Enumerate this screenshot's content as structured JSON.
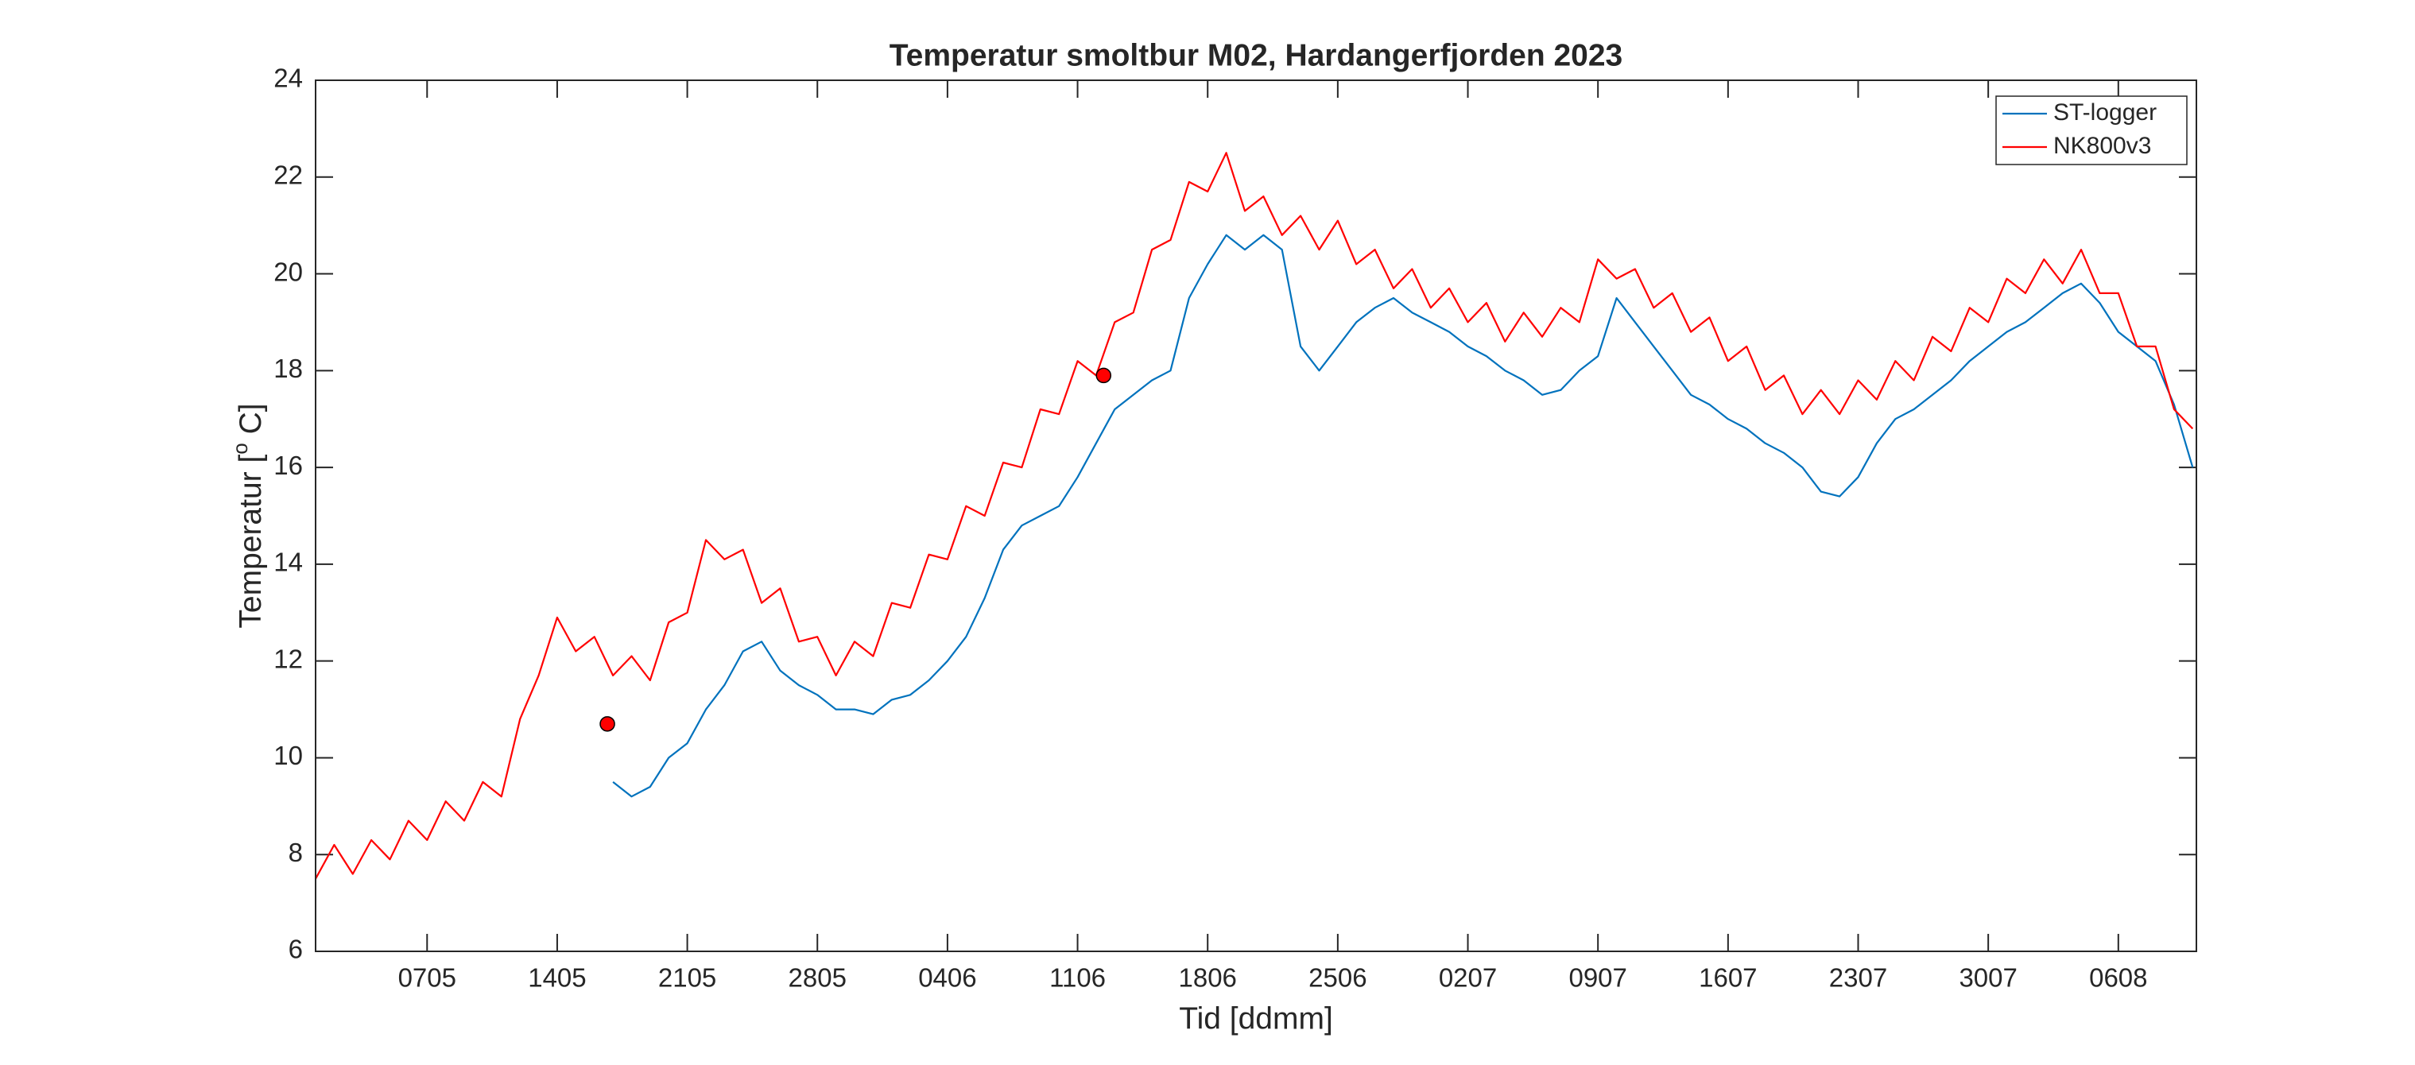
{
  "chart_data": {
    "type": "line",
    "title": "Temperatur smoltbur M02, Hardangerfjorden 2023",
    "xlabel": "Tid [ddmm]",
    "ylabel": "Temperatur [",
    "ylabel_sup": "o",
    "ylabel_end": " C]",
    "xlim": [
      121,
      222.2
    ],
    "ylim": [
      6,
      24
    ],
    "xticks": [
      {
        "value": 127,
        "label": "0705"
      },
      {
        "value": 134,
        "label": "1405"
      },
      {
        "value": 141,
        "label": "2105"
      },
      {
        "value": 148,
        "label": "2805"
      },
      {
        "value": 155,
        "label": "0406"
      },
      {
        "value": 162,
        "label": "1106"
      },
      {
        "value": 169,
        "label": "1806"
      },
      {
        "value": 176,
        "label": "2506"
      },
      {
        "value": 183,
        "label": "0207"
      },
      {
        "value": 190,
        "label": "0907"
      },
      {
        "value": 197,
        "label": "1607"
      },
      {
        "value": 204,
        "label": "2307"
      },
      {
        "value": 211,
        "label": "3007"
      },
      {
        "value": 218,
        "label": "0608"
      }
    ],
    "yticks": [
      6,
      8,
      10,
      12,
      14,
      16,
      18,
      20,
      22,
      24
    ],
    "legend": "upper right",
    "series": [
      {
        "name": "ST-logger",
        "color": "#0072bd",
        "x": [
          137,
          138,
          139,
          140,
          141,
          142,
          143,
          144,
          145,
          146,
          147,
          148,
          149,
          150,
          151,
          152,
          153,
          154,
          155,
          156,
          157,
          158,
          159,
          160,
          161,
          162,
          163,
          164,
          165,
          166,
          167,
          168,
          169,
          170,
          171,
          172,
          173,
          174,
          175,
          176,
          177,
          178,
          179,
          180,
          181,
          182,
          183,
          184,
          185,
          186,
          187,
          188,
          189,
          190,
          191,
          192,
          193,
          194,
          195,
          196,
          197,
          198,
          199,
          200,
          201,
          202,
          203,
          204,
          205,
          206,
          207,
          208,
          209,
          210,
          211,
          212,
          213,
          214,
          215,
          216,
          217,
          218,
          219,
          220,
          221,
          222
        ],
        "values": [
          9.5,
          9.2,
          9.4,
          10.0,
          10.3,
          11.0,
          11.5,
          12.2,
          12.4,
          11.8,
          11.5,
          11.3,
          11.0,
          11.0,
          10.9,
          11.2,
          11.3,
          11.6,
          12.0,
          12.5,
          13.3,
          14.3,
          14.8,
          15.0,
          15.2,
          15.8,
          16.5,
          17.2,
          17.5,
          17.8,
          18.0,
          19.5,
          20.2,
          20.8,
          20.5,
          20.8,
          20.5,
          18.5,
          18.0,
          18.5,
          19.0,
          19.3,
          19.5,
          19.2,
          19.0,
          18.8,
          18.5,
          18.3,
          18.0,
          17.8,
          17.5,
          17.6,
          18.0,
          18.3,
          19.5,
          19.0,
          18.5,
          18.0,
          17.5,
          17.3,
          17.0,
          16.8,
          16.5,
          16.3,
          16.0,
          15.5,
          15.4,
          15.8,
          16.5,
          17.0,
          17.2,
          17.5,
          17.8,
          18.2,
          18.5,
          18.8,
          19.0,
          19.3,
          19.6,
          19.8,
          19.4,
          18.8,
          18.5,
          18.2,
          17.3,
          16.0
        ]
      },
      {
        "name": "NK800v3",
        "color": "#ff0000",
        "x": [
          121,
          122,
          123,
          124,
          125,
          126,
          127,
          128,
          129,
          130,
          131,
          132,
          133,
          134,
          135,
          136,
          137,
          138,
          139,
          140,
          141,
          142,
          143,
          144,
          145,
          146,
          147,
          148,
          149,
          150,
          151,
          152,
          153,
          154,
          155,
          156,
          157,
          158,
          159,
          160,
          161,
          162,
          163,
          164,
          165,
          166,
          167,
          168,
          169,
          170,
          171,
          172,
          173,
          174,
          175,
          176,
          177,
          178,
          179,
          180,
          181,
          182,
          183,
          184,
          185,
          186,
          187,
          188,
          189,
          190,
          191,
          192,
          193,
          194,
          195,
          196,
          197,
          198,
          199,
          200,
          201,
          202,
          203,
          204,
          205,
          206,
          207,
          208,
          209,
          210,
          211,
          212,
          213,
          214,
          215,
          216,
          217,
          218,
          219,
          220,
          221,
          222
        ],
        "values": [
          7.5,
          8.2,
          7.6,
          8.3,
          7.9,
          8.7,
          8.3,
          9.1,
          8.7,
          9.5,
          9.2,
          10.8,
          11.7,
          12.9,
          12.2,
          12.5,
          11.7,
          12.1,
          11.6,
          12.8,
          13.0,
          14.5,
          14.1,
          14.3,
          13.2,
          13.5,
          12.4,
          12.5,
          11.7,
          12.4,
          12.1,
          13.2,
          13.1,
          14.2,
          14.1,
          15.2,
          15.0,
          16.1,
          16.0,
          17.2,
          17.1,
          18.2,
          17.9,
          19.0,
          19.2,
          20.5,
          20.7,
          21.9,
          21.7,
          22.5,
          21.3,
          21.6,
          20.8,
          21.2,
          20.5,
          21.1,
          20.2,
          20.5,
          19.7,
          20.1,
          19.3,
          19.7,
          19.0,
          19.4,
          18.6,
          19.2,
          18.7,
          19.3,
          19.0,
          20.3,
          19.9,
          20.1,
          19.3,
          19.6,
          18.8,
          19.1,
          18.2,
          18.5,
          17.6,
          17.9,
          17.1,
          17.6,
          17.1,
          17.8,
          17.4,
          18.2,
          17.8,
          18.7,
          18.4,
          19.3,
          19.0,
          19.9,
          19.6,
          20.3,
          19.8,
          20.5,
          19.6,
          19.6,
          18.5,
          18.5,
          17.2,
          16.8
        ]
      }
    ],
    "markers": {
      "color": "#ff0000",
      "x": [
        136.7,
        163.4
      ],
      "values": [
        10.7,
        17.9
      ]
    }
  }
}
